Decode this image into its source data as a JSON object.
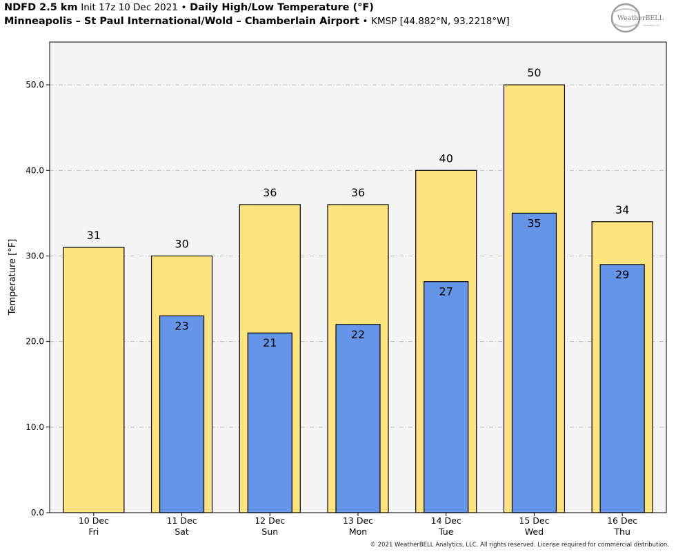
{
  "header": {
    "model": "NDFD 2.5 km",
    "init": "Init 17z 10 Dec 2021",
    "sep1": "•",
    "product": "Daily High/Low Temperature (°F)",
    "station": "Minneapolis – St Paul International/Wold – Chamberlain Airport",
    "sep2": "•",
    "station_info": "KMSP [44.882°N, 93.2218°W]"
  },
  "logo": {
    "text": "WeatherBELL",
    "sub": "Analytics LLC"
  },
  "footer": {
    "copyright": "© 2021 WeatherBELL Analytics, LLC. All rights reserved. License required for commercial distribution."
  },
  "colors": {
    "high": "#fde47f",
    "low": "#6495e8",
    "plot_bg": "#f4f4f4",
    "grid": "#bbbbbb"
  },
  "chart_data": {
    "type": "bar",
    "ylabel": "Temperature [°F]",
    "ylim": [
      0,
      55
    ],
    "yticks": [
      "0.0",
      "10.0",
      "20.0",
      "30.0",
      "40.0",
      "50.0"
    ],
    "ytick_values": [
      0,
      10,
      20,
      30,
      40,
      50
    ],
    "grid": true,
    "categories": [
      {
        "date": "10 Dec",
        "day": "Fri"
      },
      {
        "date": "11 Dec",
        "day": "Sat"
      },
      {
        "date": "12 Dec",
        "day": "Sun"
      },
      {
        "date": "13 Dec",
        "day": "Mon"
      },
      {
        "date": "14 Dec",
        "day": "Tue"
      },
      {
        "date": "15 Dec",
        "day": "Wed"
      },
      {
        "date": "16 Dec",
        "day": "Thu"
      }
    ],
    "series": [
      {
        "key": "high",
        "values": [
          31,
          30,
          36,
          36,
          40,
          50,
          34
        ]
      },
      {
        "key": "low",
        "values": [
          null,
          23,
          21,
          22,
          27,
          35,
          29
        ]
      }
    ]
  }
}
